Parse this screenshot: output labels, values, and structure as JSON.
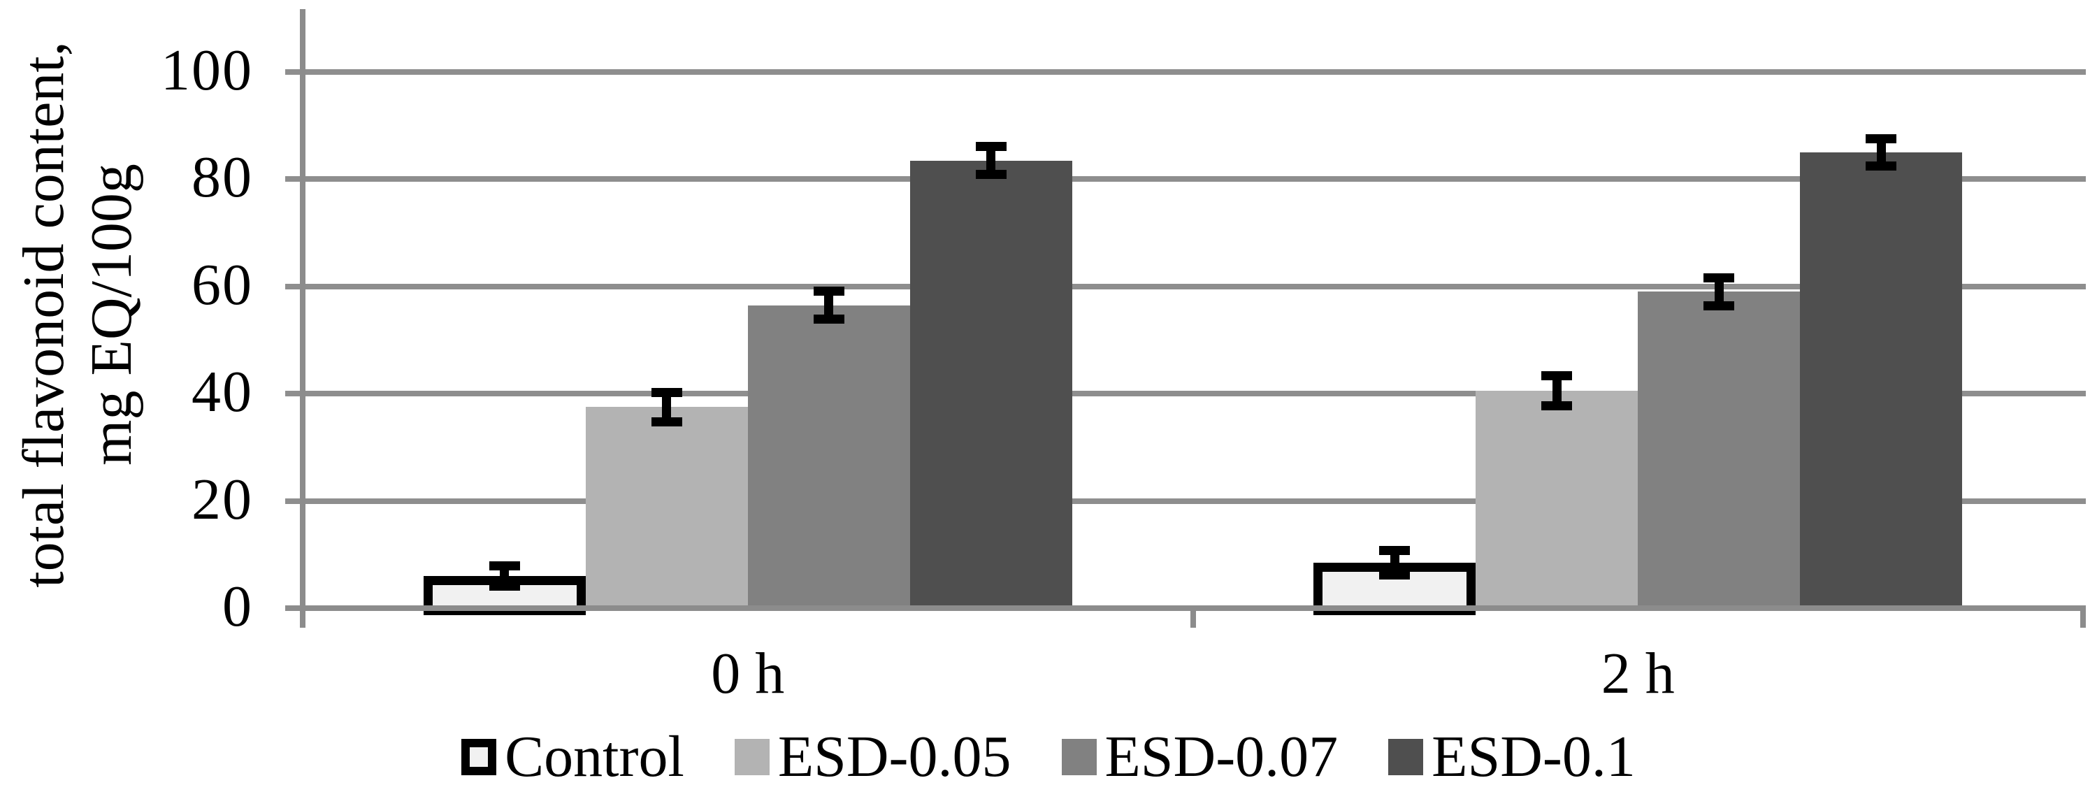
{
  "chart_data": {
    "type": "bar",
    "title": "",
    "ylabel_line1": "total flavonoid content,",
    "ylabel_line2": "mg EQ/100g",
    "xlabel": "",
    "categories": [
      "0 h",
      "2 h"
    ],
    "yticks": [
      0,
      20,
      40,
      60,
      80,
      100
    ],
    "ylim": [
      0,
      100
    ],
    "grid": "horizontal gridlines at every y tick",
    "legend_position": "bottom",
    "error_bars": true,
    "series": [
      {
        "name": "Control",
        "fill": "#f1f1f1",
        "border": "#000000",
        "values": [
          6.0,
          8.5
        ],
        "errors": [
          1.3,
          1.7
        ]
      },
      {
        "name": "ESD-0.05",
        "fill": "#b3b3b3",
        "border": null,
        "values": [
          37.5,
          40.5
        ],
        "errors": [
          2.2,
          2.2
        ]
      },
      {
        "name": "ESD-0.07",
        "fill": "#818181",
        "border": null,
        "values": [
          56.5,
          59.0
        ],
        "errors": [
          2.0,
          2.0
        ]
      },
      {
        "name": "ESD-0.1",
        "fill": "#4f4f4f",
        "border": null,
        "values": [
          83.5,
          85.0
        ],
        "errors": [
          2.0,
          2.0
        ]
      }
    ],
    "colors": {
      "axis": "#8c8c8c",
      "gridline": "#8e8e8e",
      "error_bar": "#000000",
      "text": "#000000",
      "background": "#ffffff"
    }
  }
}
